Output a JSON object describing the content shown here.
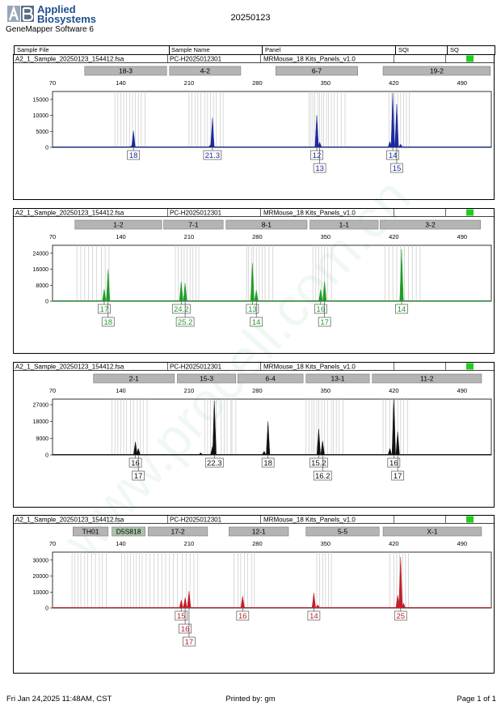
{
  "header": {
    "brand_line1": "Applied",
    "brand_line2": "Biosystems",
    "software": "GeneMapper Software 6",
    "run_date": "20250123"
  },
  "columns": {
    "sample_file": "Sample File",
    "sample_name": "Sample Name",
    "panel": "Panel",
    "sqi": "SQI",
    "sq": "SQ"
  },
  "footer": {
    "printed_at": "Fri Jan 24,2025 11:48AM, CST",
    "printed_by": "Printed by: gm",
    "page": "Page 1 of 1"
  },
  "watermark": "www.procell.com.cn",
  "status_color": "#22cc22",
  "chart_data": [
    {
      "type": "electropherogram",
      "sample_file": "A2_1_Sample_20250123_154412.fsa",
      "sample_name": "PC-H2025012301",
      "panel": "MRMouse_18 Kits_Panels_v1.0",
      "color": "#1a2a9e",
      "xlim": [
        70,
        520
      ],
      "ylim": [
        0,
        17500
      ],
      "x_ticks": [
        70,
        140,
        210,
        280,
        350,
        420,
        490
      ],
      "y_ticks": [
        0,
        5000,
        10000,
        15000
      ],
      "markers": [
        {
          "label": "18-3",
          "from": 103,
          "to": 187,
          "shade": "#b4b4b4"
        },
        {
          "label": "4-2",
          "from": 190,
          "to": 263,
          "shade": "#b4b4b4"
        },
        {
          "label": "6-7",
          "from": 299,
          "to": 383,
          "shade": "#b4b4b4"
        },
        {
          "label": "19-2",
          "from": 409,
          "to": 519,
          "shade": "#b4b4b4"
        }
      ],
      "bins": [
        134,
        137,
        140,
        143,
        146,
        149,
        152,
        155,
        158,
        161,
        165,
        210,
        213,
        216,
        219,
        222,
        226,
        229,
        232,
        235,
        238,
        242,
        245,
        333,
        335,
        337,
        339,
        342,
        344,
        346,
        348,
        351,
        353,
        356,
        359,
        362,
        366,
        370,
        415,
        418,
        421,
        424,
        427,
        430,
        433,
        436
      ],
      "peaks": [
        {
          "x": 153,
          "h": 5200
        },
        {
          "x": 151,
          "h": 500
        },
        {
          "x": 234,
          "h": 9200
        },
        {
          "x": 232,
          "h": 800
        },
        {
          "x": 341,
          "h": 10000
        },
        {
          "x": 344,
          "h": 1600
        },
        {
          "x": 419,
          "h": 17000
        },
        {
          "x": 423,
          "h": 13500
        },
        {
          "x": 416,
          "h": 1800
        },
        {
          "x": 427,
          "h": 1000
        }
      ],
      "allele_calls": [
        {
          "x": 153,
          "label": "18",
          "row": 1
        },
        {
          "x": 234,
          "label": "21.3",
          "row": 1
        },
        {
          "x": 341,
          "label": "12",
          "row": 1
        },
        {
          "x": 344,
          "label": "13",
          "row": 2
        },
        {
          "x": 419,
          "label": "14",
          "row": 1
        },
        {
          "x": 423,
          "label": "15",
          "row": 2
        }
      ]
    },
    {
      "type": "electropherogram",
      "sample_file": "A2_1_Sample_20250123_154412.fsa",
      "sample_name": "PC-H2025012301",
      "panel": "MRMouse_18 Kits_Panels_v1.0",
      "color": "#1f9e2a",
      "xlim": [
        70,
        520
      ],
      "ylim": [
        0,
        28000
      ],
      "x_ticks": [
        70,
        140,
        210,
        280,
        350,
        420,
        490
      ],
      "y_ticks": [
        0,
        8000,
        16000,
        24000
      ],
      "markers": [
        {
          "label": "1-2",
          "from": 93,
          "to": 182,
          "shade": "#b4b4b4"
        },
        {
          "label": "7-1",
          "from": 184,
          "to": 245,
          "shade": "#b4b4b4"
        },
        {
          "label": "8-1",
          "from": 248,
          "to": 331,
          "shade": "#b4b4b4"
        },
        {
          "label": "1-1",
          "from": 334,
          "to": 404,
          "shade": "#b4b4b4"
        },
        {
          "label": "3-2",
          "from": 406,
          "to": 509,
          "shade": "#b4b4b4"
        }
      ],
      "bins": [
        95,
        99,
        103,
        107,
        111,
        115,
        120,
        124,
        128,
        196,
        199,
        202,
        205,
        208,
        211,
        214,
        217,
        220,
        269,
        271,
        274,
        276,
        279,
        282,
        285,
        288,
        292,
        296,
        337,
        340,
        343,
        346,
        349,
        352,
        356,
        411,
        415,
        419,
        423,
        427,
        431,
        435,
        439,
        443,
        447
      ],
      "peaks": [
        {
          "x": 123,
          "h": 6000
        },
        {
          "x": 127,
          "h": 16000
        },
        {
          "x": 202,
          "h": 10000
        },
        {
          "x": 206,
          "h": 9000
        },
        {
          "x": 275,
          "h": 19000
        },
        {
          "x": 279,
          "h": 5500
        },
        {
          "x": 345,
          "h": 6000
        },
        {
          "x": 349,
          "h": 10000
        },
        {
          "x": 428,
          "h": 26000
        }
      ],
      "allele_calls": [
        {
          "x": 123,
          "label": "17",
          "row": 1
        },
        {
          "x": 127,
          "label": "18",
          "row": 2
        },
        {
          "x": 202,
          "label": "24.2",
          "row": 1
        },
        {
          "x": 206,
          "label": "25.2",
          "row": 2
        },
        {
          "x": 275,
          "label": "13",
          "row": 1
        },
        {
          "x": 279,
          "label": "14",
          "row": 2
        },
        {
          "x": 345,
          "label": "16",
          "row": 1
        },
        {
          "x": 349,
          "label": "17",
          "row": 2
        },
        {
          "x": 428,
          "label": "14",
          "row": 1
        }
      ]
    },
    {
      "type": "electropherogram",
      "sample_file": "A2_1_Sample_20250123_154412.fsa",
      "sample_name": "PC-H2025012301",
      "panel": "MRMouse_18 Kits_Panels_v1.0",
      "color": "#111111",
      "xlim": [
        70,
        520
      ],
      "ylim": [
        0,
        30000
      ],
      "x_ticks": [
        70,
        140,
        210,
        280,
        350,
        420,
        490
      ],
      "y_ticks": [
        0,
        9000,
        18000,
        27000
      ],
      "markers": [
        {
          "label": "2-1",
          "from": 112,
          "to": 195,
          "shade": "#b4b4b4"
        },
        {
          "label": "15-3",
          "from": 198,
          "to": 258,
          "shade": "#b4b4b4"
        },
        {
          "label": "6-4",
          "from": 260,
          "to": 327,
          "shade": "#b4b4b4"
        },
        {
          "label": "13-1",
          "from": 330,
          "to": 395,
          "shade": "#b4b4b4"
        },
        {
          "label": "11-2",
          "from": 398,
          "to": 510,
          "shade": "#b4b4b4"
        }
      ],
      "bins": [
        131,
        134,
        137,
        140,
        143,
        146,
        150,
        153,
        157,
        160,
        163,
        167,
        226,
        229,
        232,
        235,
        238,
        243,
        246,
        249,
        253,
        254,
        258,
        330,
        333,
        336,
        338,
        341,
        343,
        346,
        349,
        352,
        356,
        358,
        361,
        364,
        368,
        409,
        412,
        416,
        419,
        421,
        424,
        427,
        430,
        434
      ],
      "peaks": [
        {
          "x": 155,
          "h": 7000
        },
        {
          "x": 158,
          "h": 3500
        },
        {
          "x": 222,
          "h": 1200
        },
        {
          "x": 234,
          "h": 4500
        },
        {
          "x": 236,
          "h": 29000
        },
        {
          "x": 291,
          "h": 18000
        },
        {
          "x": 287,
          "h": 2000
        },
        {
          "x": 343,
          "h": 14000
        },
        {
          "x": 347,
          "h": 7500
        },
        {
          "x": 420,
          "h": 30000
        },
        {
          "x": 424,
          "h": 12500
        },
        {
          "x": 416,
          "h": 3500
        }
      ],
      "allele_calls": [
        {
          "x": 155,
          "label": "16",
          "row": 1
        },
        {
          "x": 158,
          "label": "17",
          "row": 2
        },
        {
          "x": 236,
          "label": "22.3",
          "row": 1
        },
        {
          "x": 291,
          "label": "18",
          "row": 1
        },
        {
          "x": 343,
          "label": "15.2",
          "row": 1
        },
        {
          "x": 347,
          "label": "16.2",
          "row": 2
        },
        {
          "x": 420,
          "label": "16",
          "row": 1
        },
        {
          "x": 424,
          "label": "17",
          "row": 2
        }
      ]
    },
    {
      "type": "electropherogram",
      "sample_file": "A2_1_Sample_20250123_154412.fsa",
      "sample_name": "PC-H2025012301",
      "panel": "MRMouse_18 Kits_Panels_v1.0",
      "color": "#c0202a",
      "xlim": [
        70,
        520
      ],
      "ylim": [
        0,
        35000
      ],
      "x_ticks": [
        70,
        140,
        210,
        280,
        350,
        420,
        490
      ],
      "y_ticks": [
        0,
        10000,
        20000,
        30000
      ],
      "markers": [
        {
          "label": "TH01",
          "from": 91,
          "to": 127,
          "shade": "#b4b4b4"
        },
        {
          "label": "D5S818",
          "from": 131,
          "to": 165,
          "shade": "#a8c4a8"
        },
        {
          "label": "17-2",
          "from": 168,
          "to": 229,
          "shade": "#b4b4b4"
        },
        {
          "label": "12-1",
          "from": 251,
          "to": 312,
          "shade": "#b4b4b4"
        },
        {
          "label": "5-5",
          "from": 330,
          "to": 405,
          "shade": "#b4b4b4"
        },
        {
          "label": "X-1",
          "from": 409,
          "to": 510,
          "shade": "#b4b4b4"
        }
      ],
      "bins": [
        90,
        93,
        96,
        99,
        103,
        106,
        110,
        114,
        118,
        121,
        125,
        141,
        144,
        147,
        150,
        153,
        156,
        159,
        162,
        166,
        170,
        174,
        178,
        182,
        186,
        190,
        194,
        198,
        203,
        207,
        211,
        215,
        219,
        256,
        260,
        263,
        267,
        270,
        274,
        277,
        341,
        344,
        347,
        350,
        353,
        356,
        416,
        420,
        423,
        426,
        429,
        432,
        435
      ],
      "peaks": [
        {
          "x": 202,
          "h": 5000
        },
        {
          "x": 206,
          "h": 6500
        },
        {
          "x": 210,
          "h": 10500
        },
        {
          "x": 265,
          "h": 7500
        },
        {
          "x": 338,
          "h": 9500
        },
        {
          "x": 342,
          "h": 2000
        },
        {
          "x": 427,
          "h": 32000
        },
        {
          "x": 424,
          "h": 8000
        },
        {
          "x": 430,
          "h": 3000
        }
      ],
      "allele_calls": [
        {
          "x": 202,
          "label": "15",
          "row": 1
        },
        {
          "x": 206,
          "label": "16",
          "row": 2
        },
        {
          "x": 210,
          "label": "17",
          "row": 3
        },
        {
          "x": 265,
          "label": "16",
          "row": 1
        },
        {
          "x": 338,
          "label": "14",
          "row": 1
        },
        {
          "x": 427,
          "label": "25",
          "row": 1
        }
      ]
    }
  ]
}
